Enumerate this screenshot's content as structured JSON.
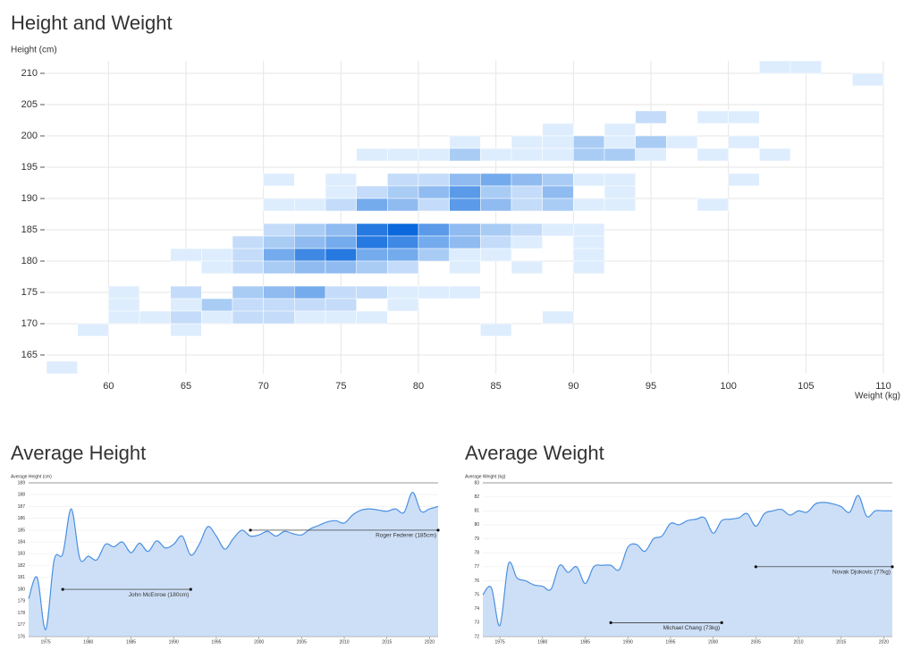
{
  "chart_data": [
    {
      "type": "heatmap",
      "title": "Height and Weight",
      "y_label": "Height (cm)",
      "x_label": "Weight (kg)",
      "xlim": [
        56,
        110
      ],
      "ylim": [
        162,
        212
      ],
      "xticks": [
        60,
        65,
        70,
        75,
        80,
        85,
        90,
        95,
        100,
        105,
        110
      ],
      "yticks": [
        165,
        170,
        175,
        180,
        185,
        190,
        195,
        200,
        205,
        210
      ],
      "xbin": 2,
      "ybin": 2,
      "grid": true,
      "colorscale": [
        "#deedfd",
        "#0a68dc"
      ],
      "rows": [
        {
          "y": 210,
          "x": [
            102,
            104
          ],
          "values": [
            1,
            1
          ]
        },
        {
          "y": 208,
          "x": [
            108
          ],
          "values": [
            1
          ]
        },
        {
          "y": 202,
          "x": [
            94,
            98,
            100
          ],
          "values": [
            2,
            1,
            1
          ]
        },
        {
          "y": 200,
          "x": [
            88,
            92
          ],
          "values": [
            1,
            1
          ]
        },
        {
          "y": 198,
          "x": [
            82,
            86,
            88,
            90,
            92,
            94,
            96,
            100
          ],
          "values": [
            1,
            1,
            1,
            3,
            1,
            3,
            1,
            1
          ]
        },
        {
          "y": 196,
          "x": [
            76,
            78,
            80,
            82,
            84,
            86,
            88,
            90,
            92,
            94,
            98,
            102
          ],
          "values": [
            1,
            1,
            1,
            3,
            1,
            1,
            1,
            3,
            3,
            1,
            1,
            1
          ]
        },
        {
          "y": 192,
          "x": [
            70,
            74,
            78,
            80,
            82,
            84,
            86,
            88,
            90,
            92,
            100
          ],
          "values": [
            1,
            1,
            2,
            2,
            4,
            5,
            4,
            3,
            1,
            1,
            1
          ]
        },
        {
          "y": 190,
          "x": [
            74,
            76,
            78,
            80,
            82,
            84,
            86,
            88,
            92
          ],
          "values": [
            1,
            2,
            3,
            4,
            6,
            3,
            2,
            4,
            1
          ]
        },
        {
          "y": 188,
          "x": [
            70,
            72,
            74,
            76,
            78,
            80,
            82,
            84,
            86,
            88,
            90,
            92,
            98
          ],
          "values": [
            1,
            1,
            2,
            5,
            4,
            2,
            6,
            4,
            2,
            3,
            1,
            1,
            1
          ]
        },
        {
          "y": 184,
          "x": [
            70,
            72,
            74,
            76,
            78,
            80,
            82,
            84,
            86,
            88,
            90
          ],
          "values": [
            2,
            3,
            4,
            8,
            9,
            6,
            4,
            3,
            2,
            1,
            1
          ]
        },
        {
          "y": 182,
          "x": [
            68,
            70,
            72,
            74,
            76,
            78,
            80,
            82,
            84,
            86,
            90
          ],
          "values": [
            2,
            3,
            4,
            5,
            8,
            7,
            5,
            4,
            2,
            1,
            1
          ]
        },
        {
          "y": 180,
          "x": [
            64,
            66,
            68,
            70,
            72,
            74,
            76,
            78,
            80,
            82,
            84,
            90
          ],
          "values": [
            1,
            1,
            2,
            5,
            7,
            8,
            5,
            5,
            3,
            1,
            1,
            1
          ]
        },
        {
          "y": 178,
          "x": [
            66,
            68,
            70,
            72,
            74,
            76,
            78,
            82,
            86,
            90
          ],
          "values": [
            1,
            2,
            3,
            4,
            4,
            3,
            2,
            1,
            1,
            1
          ]
        },
        {
          "y": 174,
          "x": [
            60,
            64,
            68,
            70,
            72,
            74,
            76,
            78,
            80,
            82
          ],
          "values": [
            1,
            2,
            3,
            4,
            5,
            2,
            2,
            1,
            1,
            1
          ]
        },
        {
          "y": 172,
          "x": [
            60,
            64,
            66,
            68,
            70,
            72,
            74,
            78
          ],
          "values": [
            1,
            1,
            3,
            2,
            2,
            2,
            2,
            1
          ]
        },
        {
          "y": 170,
          "x": [
            60,
            62,
            64,
            66,
            68,
            70,
            72,
            74,
            76,
            88
          ],
          "values": [
            1,
            1,
            2,
            1,
            2,
            2,
            1,
            1,
            1,
            1
          ]
        },
        {
          "y": 168,
          "x": [
            58,
            64,
            84
          ],
          "values": [
            1,
            1,
            1
          ]
        },
        {
          "y": 162,
          "x": [
            56
          ],
          "values": [
            1
          ]
        }
      ]
    },
    {
      "type": "area",
      "title": "Average Height",
      "y_label": "Average Height (cm)",
      "xlim": [
        1973,
        2021
      ],
      "ylim": [
        176,
        189
      ],
      "xticks": [
        1975,
        1980,
        1985,
        1990,
        1995,
        2000,
        2005,
        2010,
        2015,
        2020
      ],
      "yticks": [
        176,
        177,
        178,
        179,
        180,
        181,
        182,
        183,
        184,
        185,
        186,
        187,
        188,
        189
      ],
      "grid": true,
      "color": "#4a90e2",
      "fill": "#cddff6",
      "x": [
        1973,
        1974,
        1975,
        1976,
        1977,
        1978,
        1979,
        1980,
        1981,
        1982,
        1983,
        1984,
        1985,
        1986,
        1987,
        1988,
        1989,
        1990,
        1991,
        1992,
        1993,
        1994,
        1995,
        1996,
        1997,
        1998,
        1999,
        2000,
        2001,
        2002,
        2003,
        2004,
        2005,
        2006,
        2007,
        2008,
        2009,
        2010,
        2011,
        2012,
        2013,
        2014,
        2015,
        2016,
        2017,
        2018,
        2019,
        2020,
        2021
      ],
      "values": [
        179.2,
        181.0,
        176.6,
        182.5,
        183.0,
        186.8,
        182.6,
        182.8,
        182.5,
        183.8,
        183.6,
        184.0,
        183.1,
        183.9,
        183.2,
        184.1,
        183.5,
        183.8,
        184.5,
        182.9,
        183.8,
        185.3,
        184.5,
        183.4,
        184.3,
        185.0,
        184.5,
        184.6,
        184.9,
        184.5,
        184.9,
        184.7,
        184.6,
        185.1,
        185.4,
        185.7,
        185.8,
        185.6,
        186.3,
        186.7,
        186.8,
        186.7,
        186.6,
        186.8,
        186.5,
        188.2,
        186.6,
        186.8,
        187.0
      ],
      "annotations": [
        {
          "label": "John McEnroe (180cm)",
          "x": [
            1977,
            1992
          ],
          "y": 180
        },
        {
          "label": "Roger Federer (185cm)",
          "x": [
            1999,
            2021
          ],
          "y": 185
        }
      ]
    },
    {
      "type": "area",
      "title": "Average Weight",
      "y_label": "Average Weight (kg)",
      "xlim": [
        1973,
        2021
      ],
      "ylim": [
        72,
        83
      ],
      "xticks": [
        1975,
        1980,
        1985,
        1990,
        1995,
        2000,
        2005,
        2010,
        2015,
        2020
      ],
      "yticks": [
        72,
        73,
        74,
        75,
        76,
        77,
        78,
        79,
        80,
        81,
        82,
        83
      ],
      "grid": true,
      "color": "#4a90e2",
      "fill": "#cddff6",
      "x": [
        1973,
        1974,
        1975,
        1976,
        1977,
        1978,
        1979,
        1980,
        1981,
        1982,
        1983,
        1984,
        1985,
        1986,
        1987,
        1988,
        1989,
        1990,
        1991,
        1992,
        1993,
        1994,
        1995,
        1996,
        1997,
        1998,
        1999,
        2000,
        2001,
        2002,
        2003,
        2004,
        2005,
        2006,
        2007,
        2008,
        2009,
        2010,
        2011,
        2012,
        2013,
        2014,
        2015,
        2016,
        2017,
        2018,
        2019,
        2020,
        2021
      ],
      "values": [
        75.0,
        75.5,
        72.8,
        77.2,
        76.2,
        76.0,
        75.7,
        75.6,
        75.4,
        77.1,
        76.6,
        77.0,
        75.8,
        77.0,
        77.1,
        77.1,
        76.8,
        78.4,
        78.6,
        78.1,
        79.0,
        79.2,
        80.1,
        80.0,
        80.3,
        80.4,
        80.5,
        79.4,
        80.3,
        80.4,
        80.5,
        80.8,
        79.9,
        80.8,
        81.0,
        81.1,
        80.7,
        81.0,
        80.9,
        81.5,
        81.6,
        81.5,
        81.3,
        80.9,
        82.1,
        80.6,
        81.0,
        81.0,
        81.0
      ],
      "annotations": [
        {
          "label": "Michael Chang (73kg)",
          "x": [
            1988,
            2001
          ],
          "y": 73
        },
        {
          "label": "Novak Djokovic (77kg)",
          "x": [
            2005,
            2021
          ],
          "y": 77
        }
      ]
    }
  ]
}
